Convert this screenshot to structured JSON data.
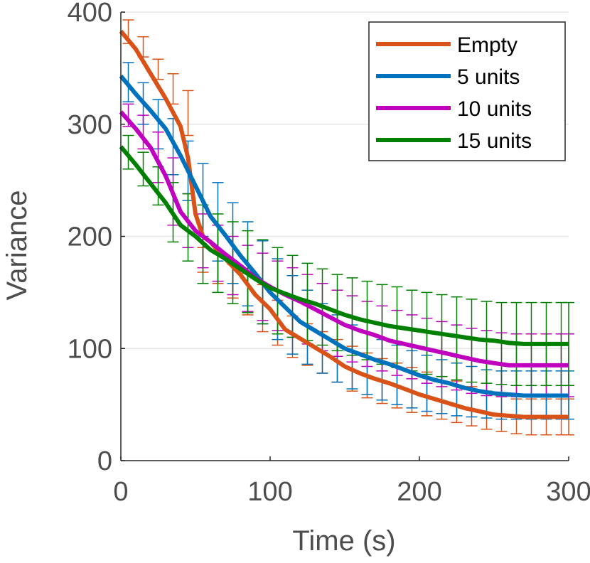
{
  "chart_data": {
    "type": "line",
    "title": "",
    "xlabel": "Time (s)",
    "ylabel": "Variance",
    "xlim": [
      0,
      300
    ],
    "ylim": [
      0,
      400
    ],
    "xticks": [
      0,
      100,
      200,
      300
    ],
    "yticks": [
      0,
      100,
      200,
      300,
      400
    ],
    "grid": "horizontal",
    "legend_position": "top-right",
    "series": [
      {
        "name": "Empty",
        "color": "#d95319",
        "points": [
          [
            0,
            383
          ],
          [
            10,
            367
          ],
          [
            20,
            345
          ],
          [
            30,
            323
          ],
          [
            40,
            298
          ],
          [
            45,
            270
          ],
          [
            50,
            220
          ],
          [
            55,
            200
          ],
          [
            60,
            195
          ],
          [
            70,
            180
          ],
          [
            80,
            166
          ],
          [
            90,
            148
          ],
          [
            100,
            135
          ],
          [
            110,
            117
          ],
          [
            120,
            109
          ],
          [
            130,
            101
          ],
          [
            140,
            93
          ],
          [
            150,
            84
          ],
          [
            160,
            78
          ],
          [
            170,
            73
          ],
          [
            180,
            69
          ],
          [
            190,
            64
          ],
          [
            200,
            59
          ],
          [
            210,
            55
          ],
          [
            220,
            51
          ],
          [
            230,
            47
          ],
          [
            240,
            44
          ],
          [
            250,
            41
          ],
          [
            260,
            40
          ],
          [
            270,
            39
          ],
          [
            280,
            39
          ],
          [
            290,
            39
          ],
          [
            300,
            39
          ]
        ],
        "error_at": [
          5,
          15,
          25,
          35,
          45,
          55,
          65,
          75,
          85,
          95,
          105,
          115,
          125,
          135,
          145,
          155,
          165,
          175,
          185,
          195,
          205,
          215,
          225,
          235,
          245,
          255,
          265,
          275,
          285,
          295,
          300
        ],
        "error_lower": [
          372,
          360,
          340,
          318,
          290,
          168,
          158,
          145,
          130,
          115,
          103,
          92,
          85,
          78,
          70,
          62,
          56,
          51,
          47,
          43,
          40,
          37,
          34,
          31,
          28,
          26,
          24,
          23,
          23,
          23,
          23
        ],
        "error_upper": [
          393,
          378,
          358,
          345,
          330,
          190,
          185,
          175,
          167,
          157,
          143,
          129,
          122,
          115,
          108,
          102,
          96,
          91,
          87,
          83,
          79,
          75,
          71,
          66,
          62,
          58,
          55,
          55,
          55,
          55,
          55
        ]
      },
      {
        "name": "5 units",
        "color": "#0072bd",
        "points": [
          [
            0,
            343
          ],
          [
            10,
            327
          ],
          [
            20,
            312
          ],
          [
            30,
            296
          ],
          [
            40,
            272
          ],
          [
            50,
            245
          ],
          [
            60,
            218
          ],
          [
            70,
            201
          ],
          [
            80,
            183
          ],
          [
            90,
            167
          ],
          [
            100,
            150
          ],
          [
            110,
            137
          ],
          [
            120,
            124
          ],
          [
            130,
            116
          ],
          [
            140,
            108
          ],
          [
            150,
            100
          ],
          [
            160,
            95
          ],
          [
            170,
            90
          ],
          [
            180,
            86
          ],
          [
            190,
            81
          ],
          [
            200,
            76
          ],
          [
            210,
            72
          ],
          [
            220,
            69
          ],
          [
            230,
            65
          ],
          [
            240,
            62
          ],
          [
            250,
            60
          ],
          [
            260,
            59
          ],
          [
            270,
            58
          ],
          [
            280,
            58
          ],
          [
            290,
            58
          ],
          [
            300,
            58
          ]
        ],
        "error_at": [
          5,
          15,
          25,
          35,
          45,
          55,
          65,
          75,
          85,
          95,
          105,
          115,
          125,
          135,
          145,
          155,
          165,
          175,
          185,
          195,
          205,
          215,
          225,
          235,
          245,
          255,
          265,
          275,
          285,
          295,
          300
        ],
        "error_lower": [
          320,
          300,
          278,
          255,
          232,
          200,
          178,
          158,
          138,
          122,
          108,
          95,
          86,
          78,
          70,
          64,
          59,
          54,
          50,
          47,
          44,
          42,
          40,
          39,
          38,
          37,
          37,
          37,
          37,
          37,
          37
        ],
        "error_upper": [
          355,
          337,
          322,
          305,
          285,
          265,
          248,
          230,
          213,
          196,
          180,
          165,
          152,
          140,
          130,
          121,
          114,
          108,
          103,
          98,
          94,
          90,
          87,
          84,
          81,
          80,
          80,
          80,
          80,
          80,
          80
        ]
      },
      {
        "name": "10 units",
        "color": "#bf00bf",
        "points": [
          [
            0,
            311
          ],
          [
            10,
            296
          ],
          [
            20,
            279
          ],
          [
            30,
            254
          ],
          [
            40,
            222
          ],
          [
            50,
            205
          ],
          [
            60,
            195
          ],
          [
            70,
            184
          ],
          [
            80,
            174
          ],
          [
            90,
            163
          ],
          [
            100,
            155
          ],
          [
            110,
            148
          ],
          [
            120,
            142
          ],
          [
            130,
            135
          ],
          [
            140,
            128
          ],
          [
            150,
            121
          ],
          [
            160,
            116
          ],
          [
            170,
            112
          ],
          [
            180,
            107
          ],
          [
            190,
            104
          ],
          [
            200,
            101
          ],
          [
            210,
            98
          ],
          [
            220,
            95
          ],
          [
            230,
            92
          ],
          [
            240,
            89
          ],
          [
            250,
            87
          ],
          [
            260,
            85
          ],
          [
            270,
            85
          ],
          [
            280,
            85
          ],
          [
            290,
            85
          ],
          [
            300,
            85
          ]
        ],
        "error_at": [
          5,
          15,
          25,
          35,
          45,
          55,
          65,
          75,
          85,
          95,
          105,
          115,
          125,
          135,
          145,
          155,
          165,
          175,
          185,
          195,
          205,
          215,
          225,
          235,
          245,
          255,
          265,
          275,
          285,
          295,
          300
        ],
        "error_lower": [
          298,
          278,
          248,
          210,
          190,
          172,
          160,
          148,
          133,
          125,
          116,
          110,
          104,
          98,
          93,
          88,
          84,
          80,
          76,
          73,
          69,
          66,
          63,
          60,
          58,
          57,
          57,
          57,
          57,
          57,
          57
        ],
        "error_upper": [
          318,
          308,
          293,
          270,
          238,
          220,
          210,
          200,
          192,
          185,
          178,
          172,
          166,
          158,
          152,
          147,
          142,
          138,
          134,
          130,
          127,
          124,
          121,
          118,
          116,
          114,
          113,
          113,
          113,
          113,
          113
        ]
      },
      {
        "name": "15 units",
        "color": "#008000",
        "points": [
          [
            0,
            280
          ],
          [
            10,
            264
          ],
          [
            20,
            247
          ],
          [
            30,
            230
          ],
          [
            40,
            210
          ],
          [
            50,
            200
          ],
          [
            60,
            188
          ],
          [
            70,
            180
          ],
          [
            80,
            171
          ],
          [
            90,
            162
          ],
          [
            100,
            154
          ],
          [
            110,
            149
          ],
          [
            120,
            144
          ],
          [
            130,
            140
          ],
          [
            140,
            135
          ],
          [
            150,
            130
          ],
          [
            160,
            126
          ],
          [
            170,
            123
          ],
          [
            180,
            120
          ],
          [
            190,
            118
          ],
          [
            200,
            116
          ],
          [
            210,
            114
          ],
          [
            220,
            112
          ],
          [
            230,
            110
          ],
          [
            240,
            108
          ],
          [
            250,
            107
          ],
          [
            260,
            105
          ],
          [
            270,
            104
          ],
          [
            280,
            104
          ],
          [
            290,
            104
          ],
          [
            300,
            104
          ]
        ],
        "error_at": [
          5,
          15,
          25,
          35,
          45,
          55,
          65,
          75,
          85,
          95,
          105,
          115,
          125,
          135,
          145,
          155,
          165,
          175,
          185,
          195,
          205,
          215,
          225,
          235,
          245,
          255,
          265,
          275,
          285,
          295,
          300
        ],
        "error_lower": [
          260,
          245,
          228,
          195,
          178,
          158,
          150,
          140,
          132,
          122,
          113,
          110,
          107,
          103,
          98,
          94,
          90,
          86,
          83,
          80,
          77,
          75,
          72,
          70,
          69,
          68,
          67,
          67,
          67,
          67,
          67
        ],
        "error_upper": [
          290,
          275,
          262,
          248,
          238,
          228,
          220,
          213,
          205,
          197,
          190,
          183,
          176,
          171,
          166,
          163,
          160,
          157,
          155,
          152,
          150,
          148,
          146,
          144,
          142,
          141,
          141,
          141,
          141,
          141,
          141
        ]
      }
    ]
  }
}
